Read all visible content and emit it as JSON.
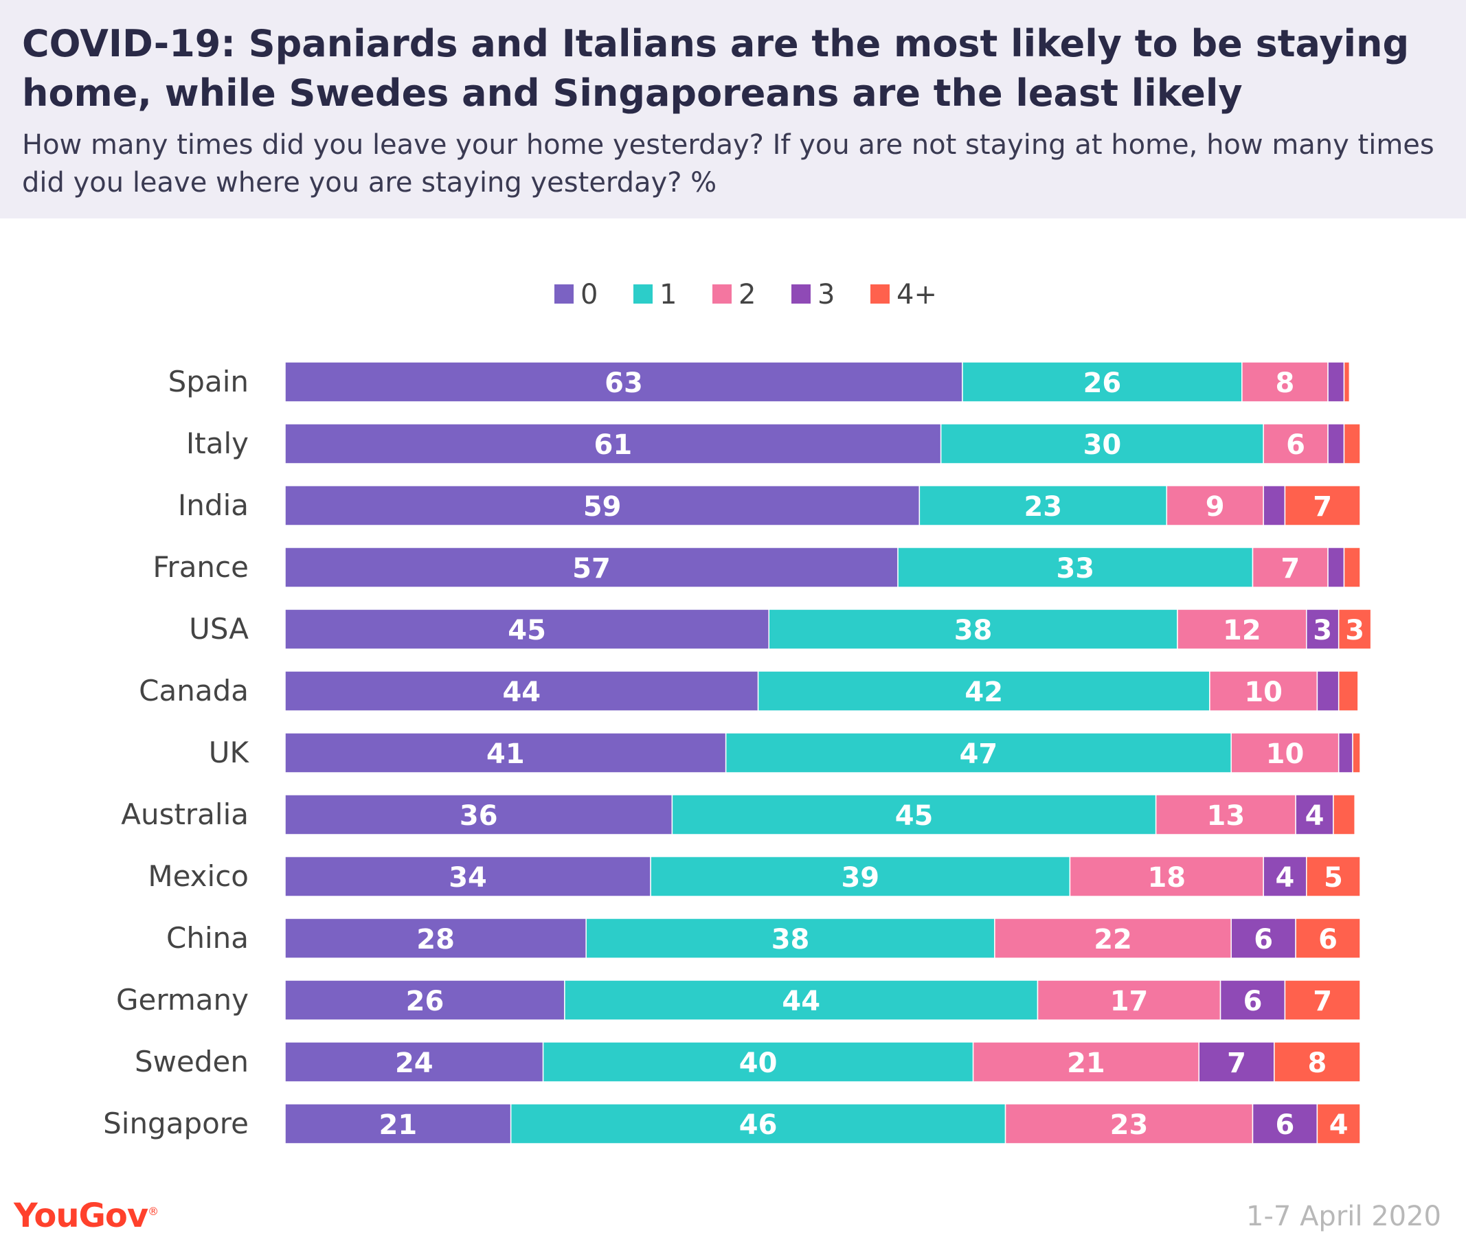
{
  "header": {
    "title": "COVID-19: Spaniards and Italians are the most likely to be staying home, while Swedes and Singaporeans are the least likely",
    "subtitle": "How many times did you leave your home yesterday?  If you are not staying at home, how many times did you leave where you are staying yesterday? %"
  },
  "footer": {
    "brand": "YouGov",
    "date": "1-7 April 2020"
  },
  "chart_data": {
    "type": "bar",
    "orientation": "horizontal",
    "stacked": true,
    "categories": [
      "Spain",
      "Italy",
      "India",
      "France",
      "USA",
      "Canada",
      "UK",
      "Australia",
      "Mexico",
      "China",
      "Germany",
      "Sweden",
      "Singapore"
    ],
    "series": [
      {
        "name": "0",
        "color": "#7b62c3",
        "values": [
          63,
          61,
          59,
          57,
          45,
          44,
          41,
          36,
          34,
          28,
          26,
          24,
          21
        ]
      },
      {
        "name": "1",
        "color": "#2ccdc9",
        "values": [
          26,
          30,
          23,
          33,
          38,
          42,
          47,
          45,
          39,
          38,
          44,
          40,
          46
        ]
      },
      {
        "name": "2",
        "color": "#f476a0",
        "values": [
          8,
          6,
          9,
          7,
          12,
          10,
          10,
          13,
          18,
          22,
          17,
          21,
          23
        ]
      },
      {
        "name": "3",
        "color": "#8f4ab6",
        "values": [
          1.5,
          1.5,
          2,
          1.5,
          3,
          2,
          1.3,
          3.5,
          4,
          6,
          6,
          7,
          6
        ]
      },
      {
        "name": "4+",
        "color": "#ff614d",
        "values": [
          0.5,
          1.5,
          7,
          1.5,
          3,
          1.8,
          0.7,
          2,
          5,
          6,
          7,
          8,
          4
        ]
      }
    ],
    "data_labels_shown": [
      [
        63,
        26,
        8,
        null,
        null
      ],
      [
        61,
        30,
        6,
        null,
        null
      ],
      [
        59,
        23,
        9,
        null,
        7
      ],
      [
        57,
        33,
        7,
        null,
        null
      ],
      [
        45,
        38,
        12,
        3,
        3
      ],
      [
        44,
        42,
        10,
        null,
        null
      ],
      [
        41,
        47,
        10,
        null,
        null
      ],
      [
        36,
        45,
        13,
        4,
        null
      ],
      [
        34,
        39,
        18,
        4,
        5
      ],
      [
        28,
        38,
        22,
        6,
        6
      ],
      [
        26,
        44,
        17,
        6,
        7
      ],
      [
        24,
        40,
        21,
        7,
        8
      ],
      [
        21,
        46,
        23,
        6,
        4
      ]
    ],
    "legend_position": "top-center",
    "xlim": [
      0,
      100
    ],
    "grid": false
  }
}
